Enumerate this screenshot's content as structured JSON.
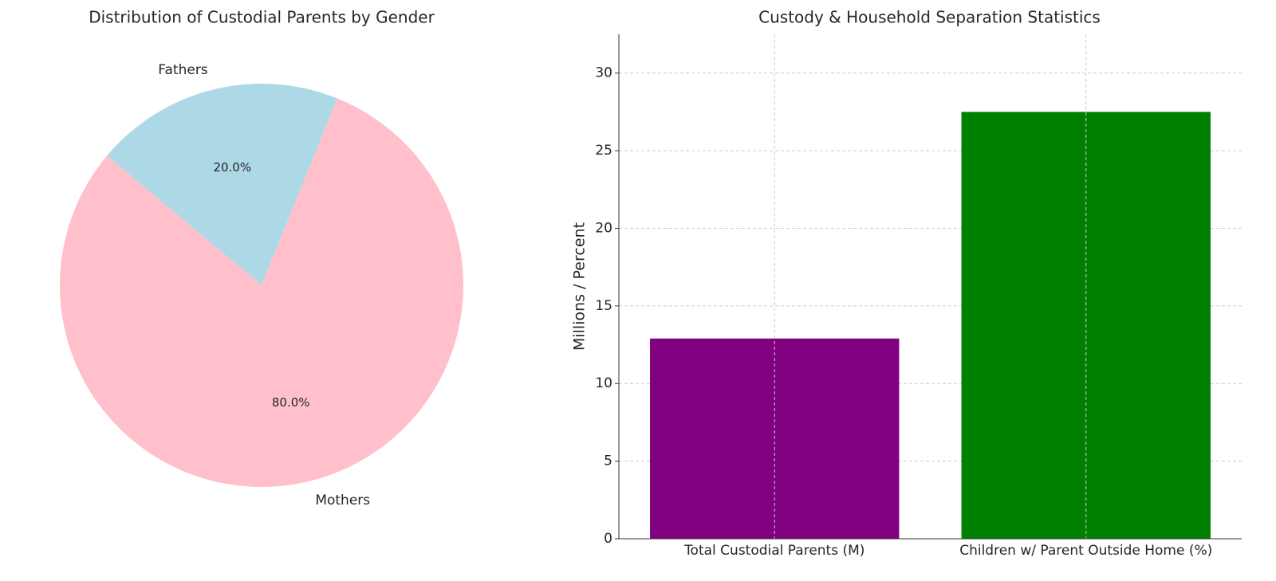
{
  "chart_data": [
    {
      "type": "pie",
      "title": "Distribution of Custodial Parents by Gender",
      "categories": [
        "Mothers",
        "Fathers"
      ],
      "values": [
        80,
        20
      ],
      "value_labels": [
        "80.0%",
        "20.0%"
      ],
      "colors": [
        "#ffc0cb",
        "#add8e6"
      ]
    },
    {
      "type": "bar",
      "title": "Custody & Household Separation Statistics",
      "categories": [
        "Total Custodial Parents (M)",
        "Children w/ Parent Outside Home (%)"
      ],
      "values": [
        12.9,
        27.5
      ],
      "colors": [
        "#800080",
        "#008000"
      ],
      "ylabel": "Millions / Percent",
      "ylim": [
        0,
        32.5
      ],
      "yticks": [
        0,
        5,
        10,
        15,
        20,
        25,
        30
      ],
      "grid": true
    }
  ]
}
